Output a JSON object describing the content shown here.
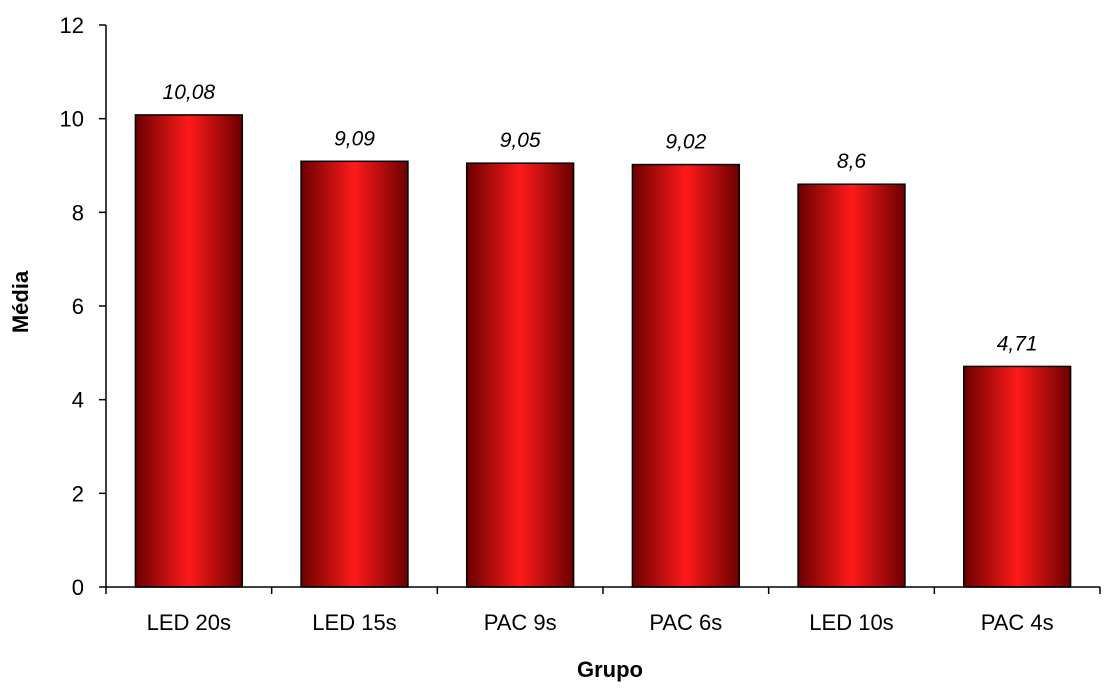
{
  "chart_data": {
    "type": "bar",
    "title": "",
    "xlabel": "Grupo",
    "ylabel": "Média",
    "categories": [
      "LED 20s",
      "LED 15s",
      "PAC 9s",
      "PAC 6s",
      "LED 10s",
      "PAC 4s"
    ],
    "values": [
      10.08,
      9.09,
      9.05,
      9.02,
      8.6,
      4.71
    ],
    "data_labels": [
      "10,08",
      "9,09",
      "9,05",
      "9,02",
      "8,6",
      "4,71"
    ],
    "ylim": [
      0,
      12
    ],
    "yticks": [
      0,
      2,
      4,
      6,
      8,
      10,
      12
    ],
    "grid": false,
    "legend": "none",
    "bar_color_light": "#ff1a1a",
    "bar_color_dark": "#6b0000"
  }
}
